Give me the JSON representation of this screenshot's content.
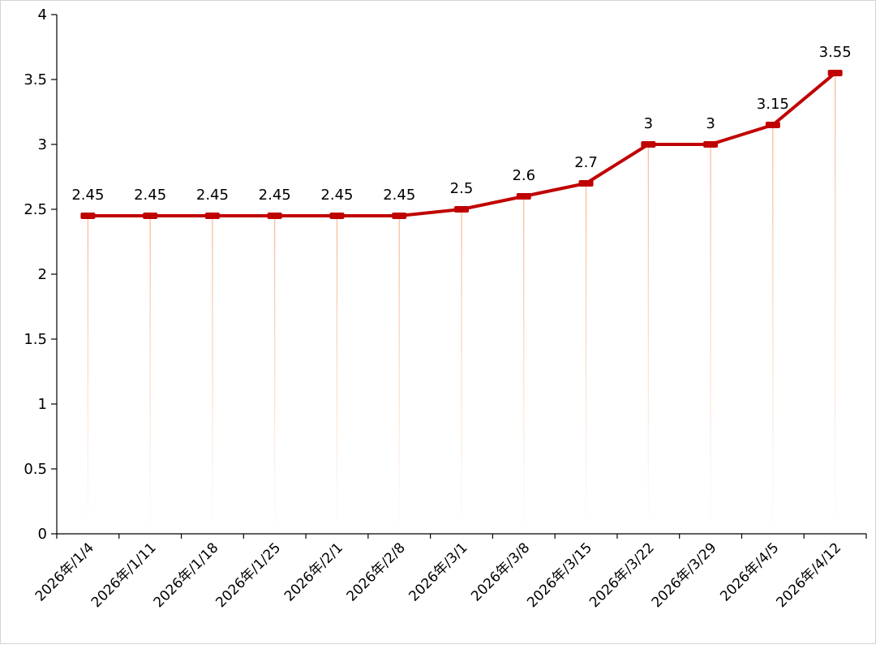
{
  "chart_data": {
    "type": "line",
    "title": "",
    "xlabel": "",
    "ylabel": "",
    "categories": [
      "2026年/1/4",
      "2026年/1/11",
      "2026年/1/18",
      "2026年/1/25",
      "2026年/2/1",
      "2026年/2/8",
      "2026年/3/1",
      "2026年/3/8",
      "2026年/3/15",
      "2026年/3/22",
      "2026年/3/29",
      "2026年/4/5",
      "2026年/4/12"
    ],
    "series": [
      {
        "values": [
          2.45,
          2.45,
          2.45,
          2.45,
          2.45,
          2.45,
          2.5,
          2.6,
          2.7,
          3,
          3,
          3.15,
          3.55
        ],
        "data_labels": [
          "2.45",
          "2.45",
          "2.45",
          "2.45",
          "2.45",
          "2.45",
          "2.5",
          "2.6",
          "2.7",
          "3",
          "3",
          "3.15",
          "3.55"
        ],
        "color": "#c00000",
        "drop_line_color": "#f4b183"
      }
    ],
    "ylim": [
      0,
      4
    ],
    "y_ticks": [
      "0",
      "0.5",
      "1",
      "1.5",
      "2",
      "2.5",
      "3",
      "3.5",
      "4"
    ],
    "grid": false,
    "legend": "none"
  }
}
